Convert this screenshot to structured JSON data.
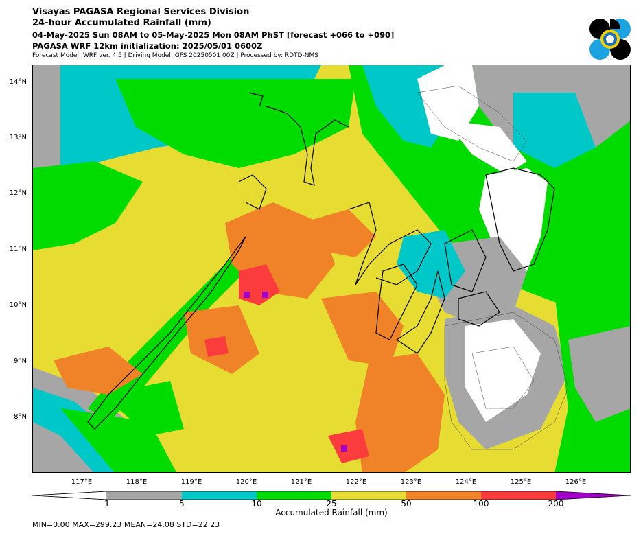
{
  "header": {
    "line1": "Visayas PAGASA Regional Services Division",
    "line2": "24-hour Accumulated Rainfall (mm)",
    "line3": "04-May-2025 Sun 08AM to 05-May-2025 Mon 08AM PhST [forecast +066 to +090]",
    "line4": "PAGASA WRF 12km initialization: 2025/05/01 0600Z",
    "line5": "Forecast Model: WRF ver. 4.5 | Driving Model: GFS 20250501 00Z | Processed by: RDTD-NMS"
  },
  "map": {
    "lat_labels": [
      "14°N",
      "13°N",
      "12°N",
      "11°N",
      "10°N",
      "9°N",
      "8°N"
    ],
    "lon_labels": [
      "117°E",
      "118°E",
      "119°E",
      "120°E",
      "121°E",
      "122°E",
      "123°E",
      "124°E",
      "125°E",
      "126°E"
    ]
  },
  "colorbar": {
    "ticks": [
      "1",
      "5",
      "10",
      "25",
      "50",
      "100",
      "200"
    ],
    "colors": [
      "#ffffff",
      "#a6a6a6",
      "#00c8c8",
      "#00dc00",
      "#e6dc32",
      "#f08228",
      "#fa3c3c",
      "#a000c8"
    ],
    "label": "Accumulated Rainfall (mm)"
  },
  "stats": "MIN=0.00   MAX=299.23   MEAN=24.08   STD=22.23"
}
